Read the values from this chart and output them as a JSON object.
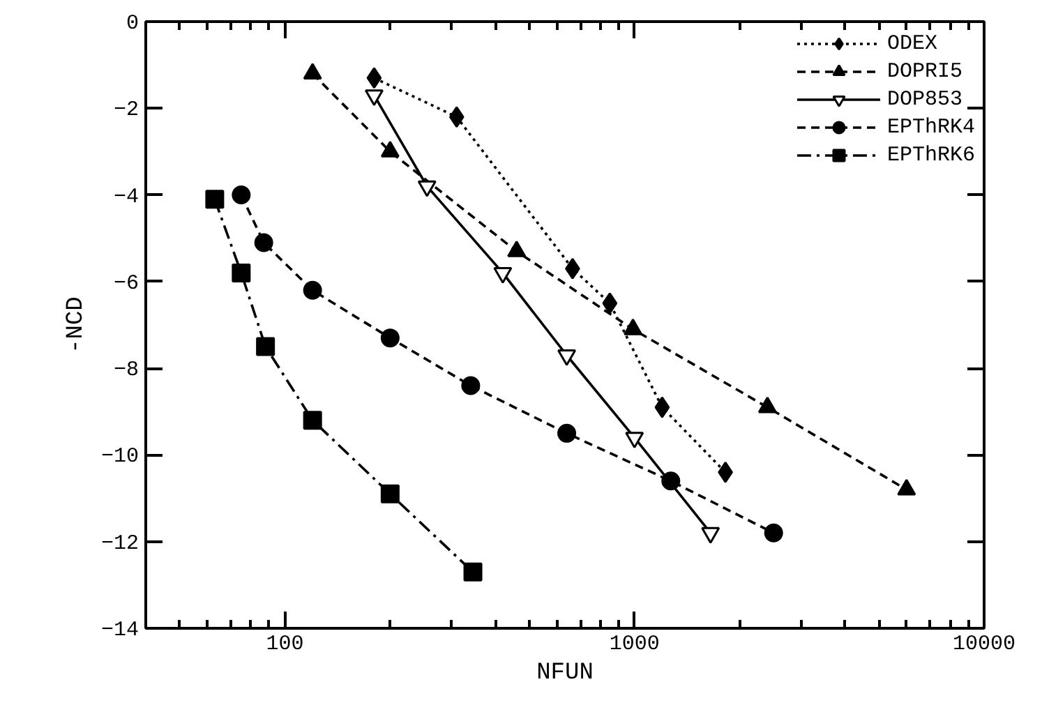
{
  "chart_data": {
    "type": "line",
    "xlabel": "NFUN",
    "ylabel": "-NCD",
    "log": "x",
    "xlim": [
      40,
      10000
    ],
    "xticks": [
      100,
      1000,
      10000
    ],
    "ylim": [
      -14,
      0
    ],
    "yticks": [
      -14,
      -12,
      -10,
      -8,
      -6,
      -4,
      -2,
      0
    ],
    "grid": false,
    "legend": "top right",
    "series": [
      {
        "name": "ODEX",
        "color": "#000000",
        "marker": "diamond",
        "line_style": "dotted",
        "x": [
          180,
          310,
          665,
          850,
          1200,
          1820
        ],
        "values": [
          -1.3,
          -2.2,
          -5.7,
          -6.5,
          -8.9,
          -10.4
        ]
      },
      {
        "name": "DOPRI5",
        "color": "#000000",
        "marker": "triangle",
        "line_style": "dashed",
        "x": [
          120,
          200,
          460,
          990,
          2400,
          6000
        ],
        "values": [
          -1.2,
          -3.0,
          -5.3,
          -7.1,
          -8.9,
          -10.8
        ]
      },
      {
        "name": "DOP853",
        "color": "#000000",
        "marker": "triangle_down",
        "line_style": "solid",
        "x": [
          180,
          255,
          420,
          640,
          1000,
          1650
        ],
        "values": [
          -1.7,
          -3.8,
          -5.8,
          -7.7,
          -9.6,
          -11.8
        ]
      },
      {
        "name": "EPThRK4",
        "color": "#000000",
        "marker": "circle",
        "line_style": "dashed",
        "x": [
          75,
          87,
          120,
          200,
          340,
          640,
          1270,
          2500
        ],
        "values": [
          -4.0,
          -5.1,
          -6.2,
          -7.3,
          -8.4,
          -9.5,
          -10.6,
          -11.8
        ]
      },
      {
        "name": "EPThRK6",
        "color": "#000000",
        "marker": "square",
        "line_style": "dashdot",
        "x": [
          63,
          75,
          88,
          120,
          200,
          345
        ],
        "values": [
          -4.1,
          -5.8,
          -7.5,
          -9.2,
          -10.9,
          -12.7
        ]
      }
    ]
  }
}
